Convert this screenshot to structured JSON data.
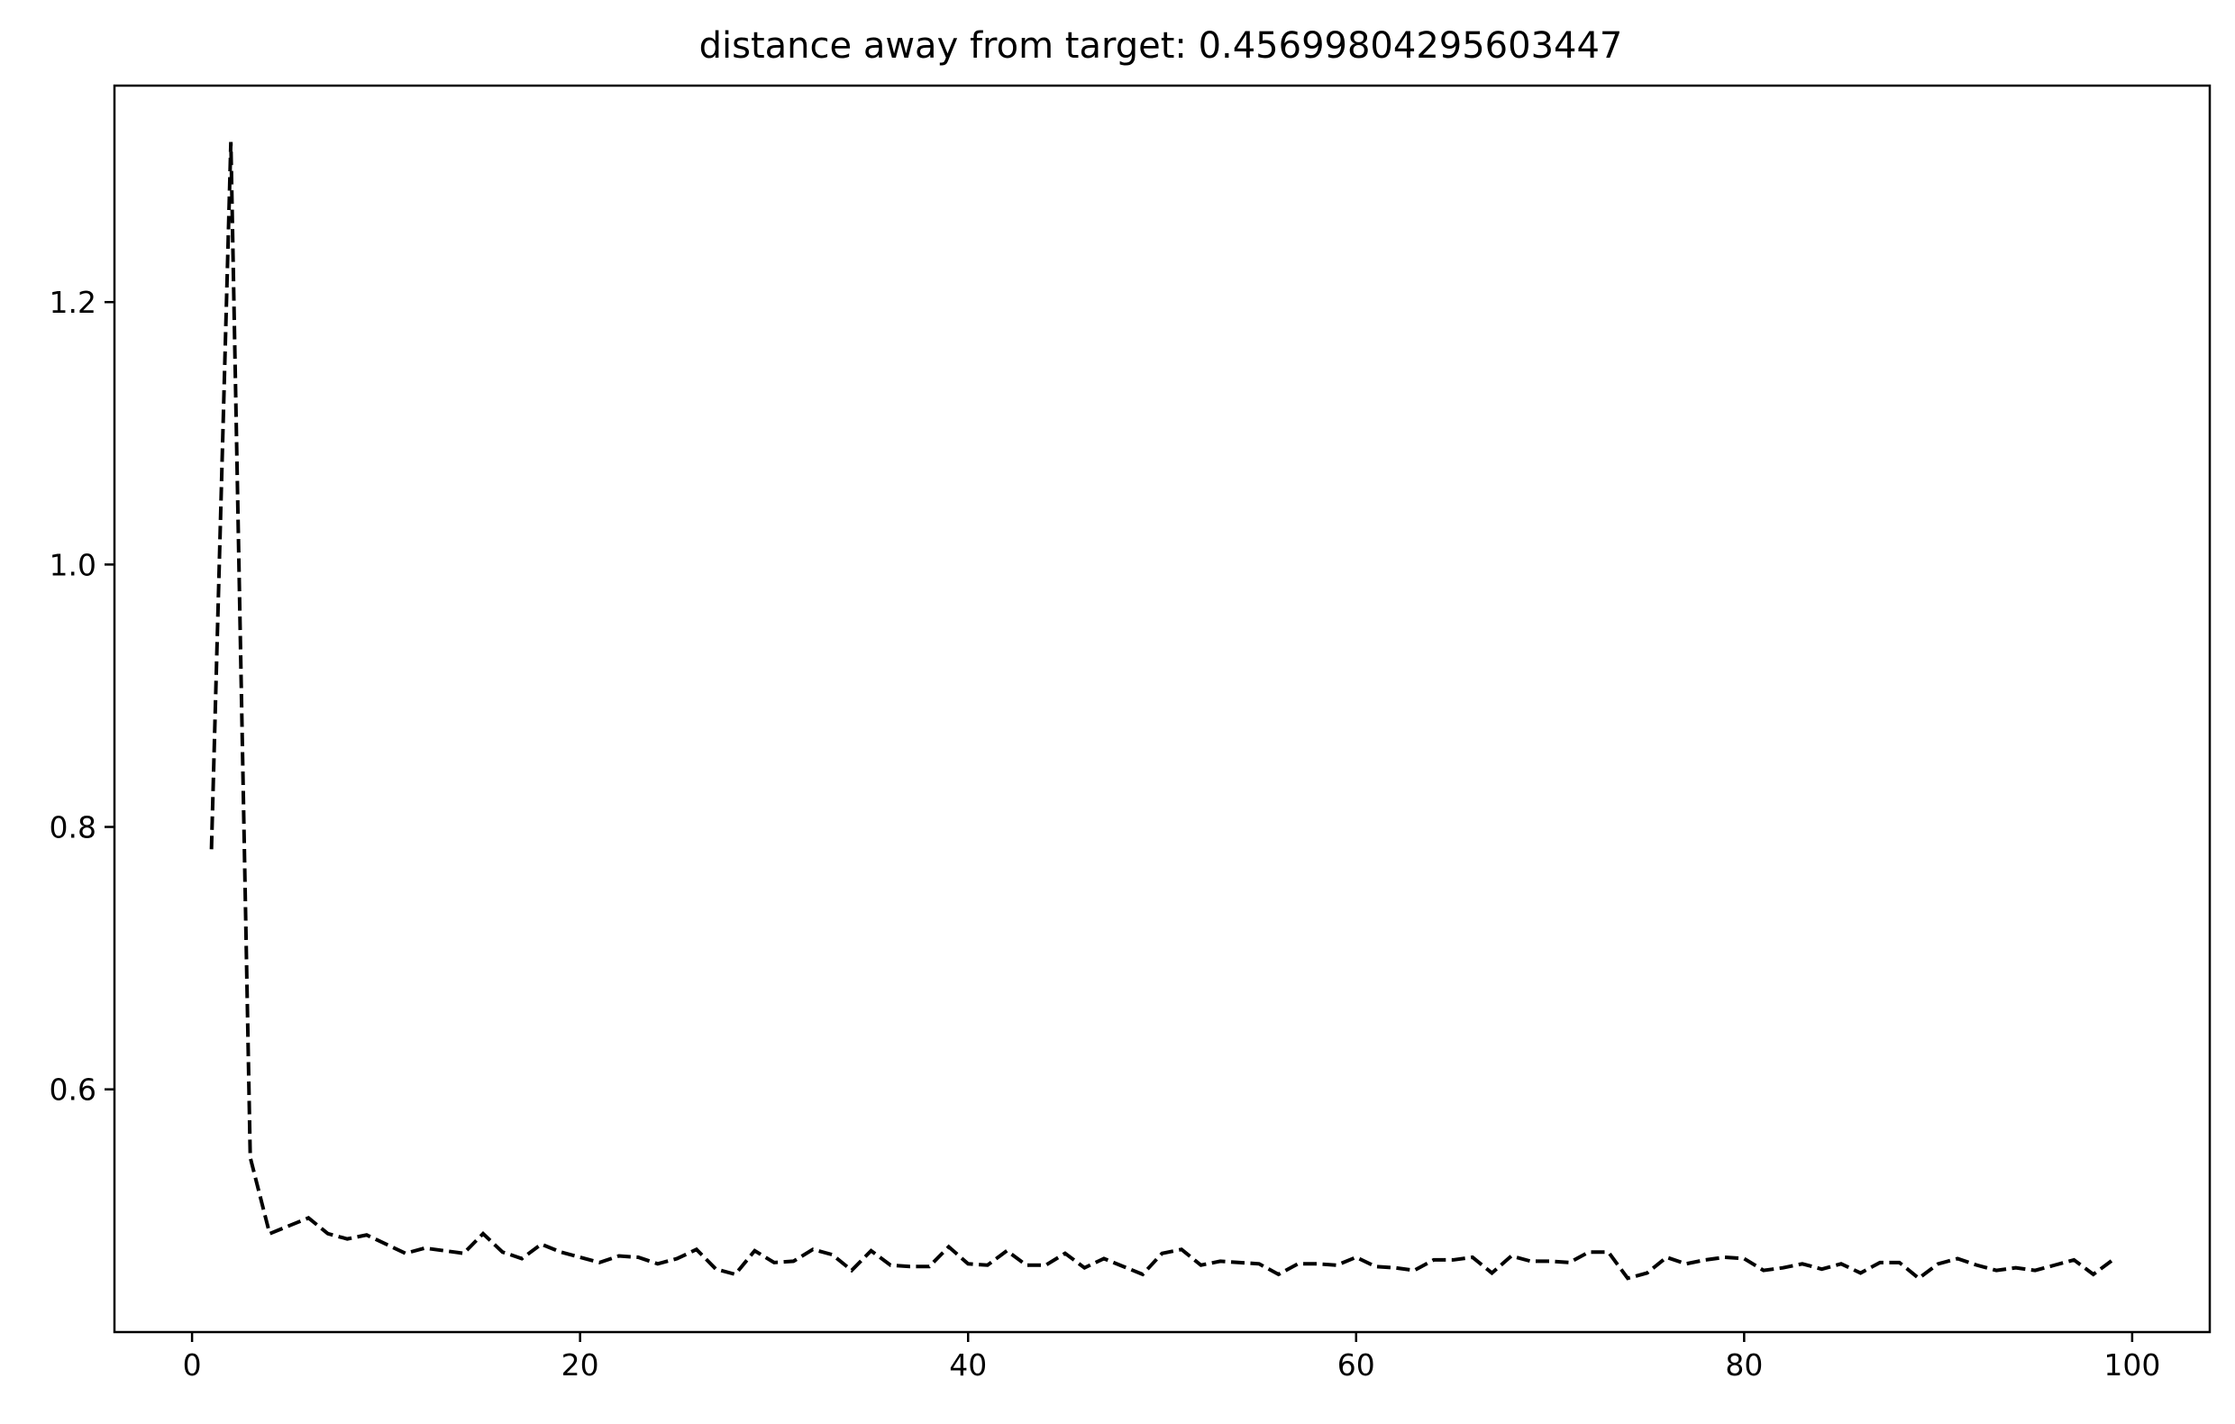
{
  "chart_data": {
    "type": "line",
    "title": "distance away from target: 0.45699804295603447",
    "xlabel": "",
    "ylabel": "",
    "xlim": [
      -4,
      104
    ],
    "ylim": [
      0.415,
      1.365
    ],
    "x_ticks": [
      0,
      20,
      40,
      60,
      80,
      100
    ],
    "x_tick_labels": [
      "0",
      "20",
      "40",
      "60",
      "80",
      "100"
    ],
    "y_ticks": [
      0.6,
      0.8,
      1.0,
      1.2
    ],
    "y_tick_labels": [
      "0.6",
      "0.8",
      "1.0",
      "1.2"
    ],
    "grid": false,
    "legend": false,
    "series": [
      {
        "line_style": "dashed",
        "color": "#000000",
        "x": [
          1,
          2,
          3,
          4,
          5,
          6,
          7,
          8,
          9,
          10,
          11,
          12,
          13,
          14,
          15,
          16,
          17,
          18,
          19,
          20,
          21,
          22,
          23,
          24,
          25,
          26,
          27,
          28,
          29,
          30,
          31,
          32,
          33,
          34,
          35,
          36,
          37,
          38,
          39,
          40,
          41,
          42,
          43,
          44,
          45,
          46,
          47,
          48,
          49,
          50,
          51,
          52,
          53,
          54,
          55,
          56,
          57,
          58,
          59,
          60,
          61,
          62,
          63,
          64,
          65,
          66,
          67,
          68,
          69,
          70,
          71,
          72,
          73,
          74,
          75,
          76,
          77,
          78,
          79,
          80,
          81,
          82,
          83,
          84,
          85,
          86,
          87,
          88,
          89,
          90,
          91,
          92,
          93,
          94,
          95,
          96,
          97,
          98,
          99
        ],
        "values": [
          0.783,
          1.322,
          0.548,
          0.49,
          0.496,
          0.502,
          0.49,
          0.486,
          0.489,
          0.482,
          0.475,
          0.479,
          0.477,
          0.475,
          0.49,
          0.476,
          0.471,
          0.482,
          0.476,
          0.472,
          0.468,
          0.473,
          0.472,
          0.467,
          0.471,
          0.478,
          0.463,
          0.459,
          0.477,
          0.468,
          0.469,
          0.478,
          0.474,
          0.462,
          0.477,
          0.466,
          0.465,
          0.465,
          0.48,
          0.467,
          0.466,
          0.477,
          0.466,
          0.466,
          0.475,
          0.464,
          0.471,
          0.465,
          0.459,
          0.475,
          0.478,
          0.466,
          0.469,
          0.468,
          0.467,
          0.459,
          0.467,
          0.467,
          0.466,
          0.472,
          0.465,
          0.464,
          0.462,
          0.47,
          0.47,
          0.472,
          0.46,
          0.473,
          0.469,
          0.469,
          0.468,
          0.476,
          0.476,
          0.456,
          0.46,
          0.472,
          0.467,
          0.47,
          0.472,
          0.471,
          0.462,
          0.464,
          0.467,
          0.463,
          0.467,
          0.46,
          0.468,
          0.468,
          0.456,
          0.467,
          0.471,
          0.466,
          0.462,
          0.464,
          0.462,
          0.466,
          0.47,
          0.459,
          0.47
        ]
      }
    ]
  }
}
